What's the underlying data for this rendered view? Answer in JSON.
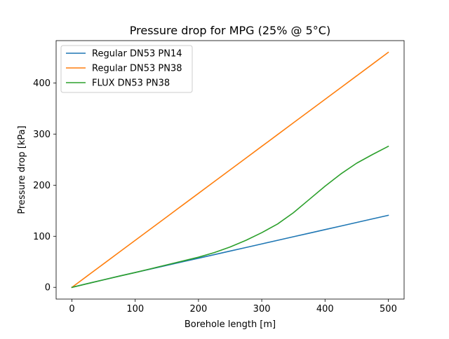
{
  "chart_data": {
    "type": "line",
    "title": "Pressure drop for MPG (25% @ 5°C)",
    "xlabel": "Borehole length [m]",
    "ylabel": "Pressure drop [kPa]",
    "xlim": [
      -25,
      525
    ],
    "ylim": [
      -23,
      483
    ],
    "xticks": [
      0,
      100,
      200,
      300,
      400,
      500
    ],
    "yticks": [
      0,
      100,
      200,
      300,
      400
    ],
    "grid": false,
    "legend_position": "upper-left",
    "x": [
      0,
      25,
      50,
      75,
      100,
      125,
      150,
      175,
      200,
      225,
      250,
      275,
      300,
      325,
      350,
      375,
      400,
      425,
      450,
      475,
      500
    ],
    "series": [
      {
        "name": "Regular DN53 PN14",
        "color": "#1f77b4",
        "values": [
          0,
          7.4,
          14.7,
          22.0,
          29.0,
          36.0,
          43.0,
          50.0,
          57.0,
          64.0,
          71.0,
          78.0,
          85.0,
          92.0,
          99.0,
          106.0,
          113.0,
          120.0,
          127.0,
          134.0,
          141.0
        ]
      },
      {
        "name": "Regular DN53 PN38",
        "color": "#ff7f0e",
        "values": [
          0,
          23.0,
          46.0,
          69.0,
          92.0,
          115.0,
          138.0,
          161.0,
          184.0,
          207.0,
          230.0,
          253.0,
          276.0,
          299.0,
          322.0,
          345.0,
          368.0,
          391.0,
          414.0,
          437.0,
          460.0
        ]
      },
      {
        "name": "FLUX DN53 PN38",
        "color": "#2ca02c",
        "values": [
          0,
          7.4,
          14.7,
          22.0,
          29.0,
          36.5,
          44.0,
          51.5,
          59.0,
          68.0,
          79.0,
          92.0,
          107.0,
          124.0,
          146.0,
          172.0,
          198.0,
          222.0,
          243.0,
          260.0,
          276.0
        ]
      }
    ]
  }
}
